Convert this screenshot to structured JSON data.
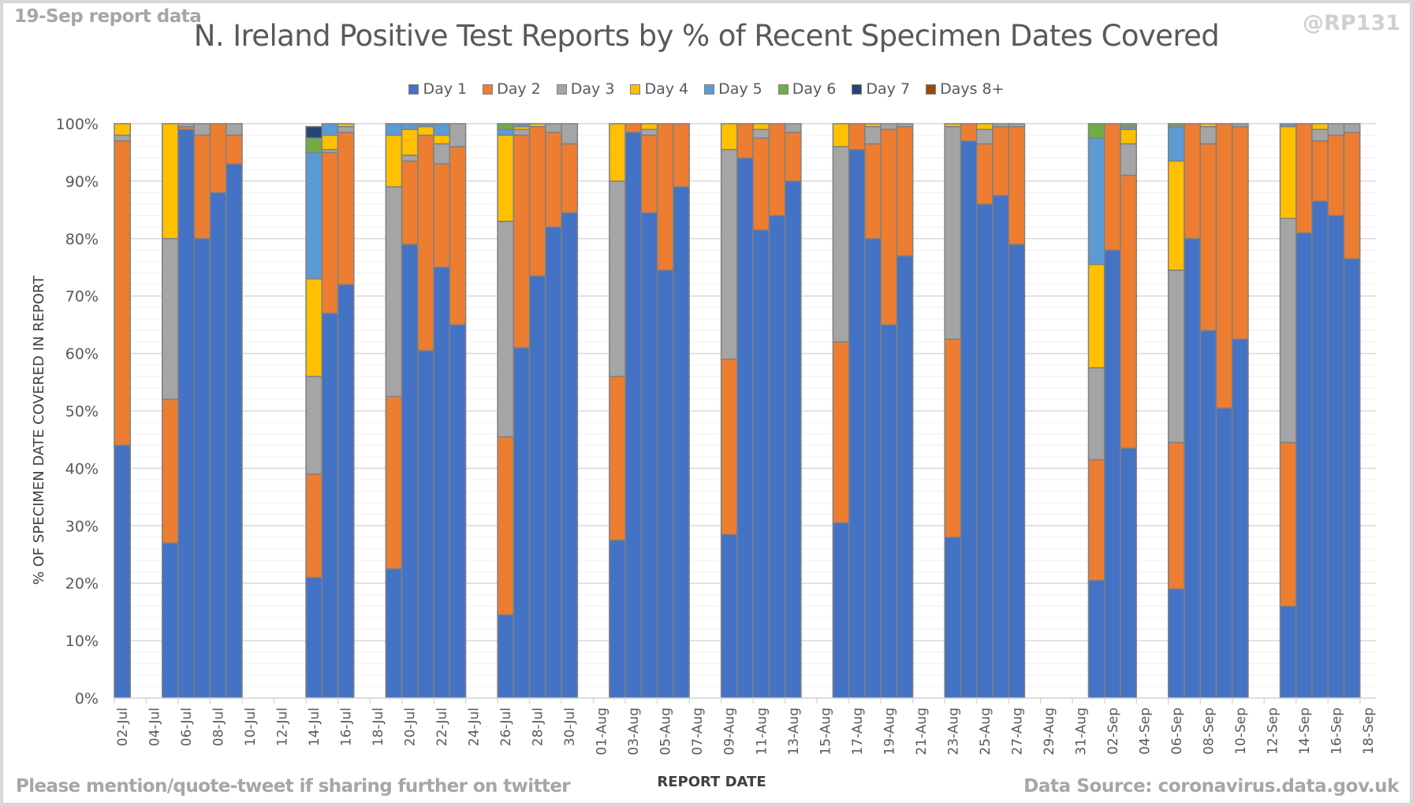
{
  "header": {
    "report_note": "19-Sep report data",
    "handle": "@RP131"
  },
  "footer": {
    "left_note": "Please mention/quote-tweet if sharing further on twitter",
    "source": "Data Source: coronavirus.data.gov.uk"
  },
  "chart_data": {
    "type": "bar",
    "stacked": true,
    "title": "N. Ireland Positive Test Reports by % of Recent Specimen Dates Covered",
    "xlabel": "REPORT DATE",
    "ylabel": "% OF SPECIMEN DATE COVERED IN REPORT",
    "ylim": [
      0,
      100
    ],
    "y_ticks": [
      "0%",
      "10%",
      "20%",
      "30%",
      "40%",
      "50%",
      "60%",
      "70%",
      "80%",
      "90%",
      "100%"
    ],
    "grid": true,
    "legend_position": "top",
    "x_axis_start": "02-Jul",
    "x_axis_end": "18-Sep",
    "x_tick_labels": [
      "02-Jul",
      "04-Jul",
      "06-Jul",
      "08-Jul",
      "10-Jul",
      "12-Jul",
      "14-Jul",
      "16-Jul",
      "18-Jul",
      "20-Jul",
      "22-Jul",
      "24-Jul",
      "26-Jul",
      "28-Jul",
      "30-Jul",
      "01-Aug",
      "03-Aug",
      "05-Aug",
      "07-Aug",
      "09-Aug",
      "11-Aug",
      "13-Aug",
      "15-Aug",
      "17-Aug",
      "19-Aug",
      "21-Aug",
      "23-Aug",
      "25-Aug",
      "27-Aug",
      "29-Aug",
      "31-Aug",
      "02-Sep",
      "04-Sep",
      "06-Sep",
      "08-Sep",
      "10-Sep",
      "12-Sep",
      "14-Sep",
      "16-Sep",
      "18-Sep"
    ],
    "series_meta": [
      {
        "name": "Day 1",
        "color": "#4472c4"
      },
      {
        "name": "Day 2",
        "color": "#ed7d31"
      },
      {
        "name": "Day 3",
        "color": "#a5a5a5"
      },
      {
        "name": "Day 4",
        "color": "#ffc000"
      },
      {
        "name": "Day 5",
        "color": "#5b9bd5"
      },
      {
        "name": "Day 6",
        "color": "#70ad47"
      },
      {
        "name": "Day 7",
        "color": "#264478"
      },
      {
        "name": "Days 8+",
        "color": "#9e480e"
      }
    ],
    "categories": [
      "02-Jul",
      "05-Jul",
      "06-Jul",
      "07-Jul",
      "08-Jul",
      "09-Jul",
      "14-Jul",
      "15-Jul",
      "16-Jul",
      "19-Jul",
      "20-Jul",
      "21-Jul",
      "22-Jul",
      "23-Jul",
      "26-Jul",
      "27-Jul",
      "28-Jul",
      "29-Jul",
      "30-Jul",
      "02-Aug",
      "03-Aug",
      "04-Aug",
      "05-Aug",
      "06-Aug",
      "09-Aug",
      "10-Aug",
      "11-Aug",
      "12-Aug",
      "13-Aug",
      "16-Aug",
      "17-Aug",
      "18-Aug",
      "19-Aug",
      "20-Aug",
      "23-Aug",
      "24-Aug",
      "25-Aug",
      "26-Aug",
      "27-Aug",
      "01-Sep",
      "02-Sep",
      "03-Sep",
      "06-Sep",
      "07-Sep",
      "08-Sep",
      "09-Sep",
      "10-Sep",
      "13-Sep",
      "14-Sep",
      "15-Sep",
      "16-Sep",
      "17-Sep"
    ],
    "series": [
      {
        "name": "Day 1",
        "values": [
          44,
          27,
          99,
          80,
          88,
          93,
          21,
          67,
          72,
          22.5,
          79,
          60.5,
          75,
          65,
          14.5,
          61,
          73.5,
          82,
          84.5,
          27.5,
          98.5,
          84.5,
          74.5,
          89,
          28.5,
          94,
          81.5,
          84,
          90,
          30.5,
          95.5,
          80,
          65,
          77,
          28,
          97,
          86,
          87.5,
          79,
          20.5,
          78,
          43.5,
          19,
          80,
          64,
          50.5,
          62.5,
          16,
          81,
          86.5,
          84,
          76.5
        ]
      },
      {
        "name": "Day 2",
        "values": [
          53,
          25,
          0.5,
          18,
          12,
          5,
          18,
          28,
          26.5,
          30,
          14.5,
          37.5,
          18,
          31,
          31,
          37,
          26,
          16.5,
          12,
          28.5,
          1.5,
          13.5,
          25.5,
          11,
          30.5,
          6,
          16,
          16,
          8.5,
          31.5,
          4.5,
          16.5,
          34,
          22.5,
          34.5,
          3,
          10.5,
          12,
          20.5,
          21,
          22,
          47.5,
          25.5,
          20,
          32.5,
          49.5,
          37,
          28.5,
          19,
          10.5,
          14,
          22
        ]
      },
      {
        "name": "Day 3",
        "values": [
          1,
          28,
          0.5,
          2,
          0,
          2,
          17,
          0.5,
          1,
          36.5,
          1,
          0,
          3.5,
          4,
          37.5,
          1,
          0,
          1.5,
          3.5,
          34,
          0,
          1,
          0,
          0,
          36.5,
          0,
          1.5,
          0,
          1.5,
          34,
          0,
          3,
          1,
          0.5,
          37,
          0,
          2.5,
          0.5,
          0.5,
          16,
          0,
          5.5,
          30,
          0,
          3,
          0,
          0.5,
          39,
          0,
          2,
          2,
          1.5
        ]
      },
      {
        "name": "Day 4",
        "values": [
          2,
          20,
          0,
          0,
          0,
          0,
          17,
          2.5,
          0.5,
          9,
          4.5,
          1.5,
          1.5,
          0,
          15,
          0.5,
          0.5,
          0,
          0,
          10,
          0,
          1,
          0,
          0,
          4.5,
          0,
          1,
          0,
          0,
          4,
          0,
          0.5,
          0,
          0,
          0.5,
          0,
          1,
          0,
          0,
          18,
          0,
          2.5,
          19,
          0,
          0.5,
          0,
          0,
          16,
          0,
          1,
          0,
          0
        ]
      },
      {
        "name": "Day 5",
        "values": [
          0,
          0,
          0,
          0,
          0,
          0,
          22,
          2,
          0,
          2,
          1,
          0.5,
          2,
          0,
          1,
          0.5,
          0,
          0,
          0,
          0,
          0,
          0,
          0,
          0,
          0,
          0,
          0,
          0,
          0,
          0,
          0,
          0,
          0,
          0,
          0,
          0,
          0,
          0,
          0,
          22,
          0,
          0.5,
          6,
          0,
          0,
          0,
          0,
          0.5,
          0,
          0,
          0,
          0
        ]
      },
      {
        "name": "Day 6",
        "values": [
          0,
          0,
          0,
          0,
          0,
          0,
          2.5,
          0,
          0,
          0,
          0,
          0,
          0,
          0,
          1,
          0,
          0,
          0,
          0,
          0,
          0,
          0,
          0,
          0,
          0,
          0,
          0,
          0,
          0,
          0,
          0,
          0,
          0,
          0,
          0,
          0,
          0,
          0,
          0,
          2.5,
          0,
          0.5,
          0.5,
          0,
          0,
          0,
          0,
          0,
          0,
          0,
          0,
          0
        ]
      },
      {
        "name": "Day 7",
        "values": [
          0,
          0,
          0,
          0,
          0,
          0,
          2,
          0,
          0,
          0,
          0,
          0,
          0,
          0,
          0,
          0,
          0,
          0,
          0,
          0,
          0,
          0,
          0,
          0,
          0,
          0,
          0,
          0,
          0,
          0,
          0,
          0,
          0,
          0,
          0,
          0,
          0,
          0,
          0,
          0,
          0,
          0,
          0,
          0,
          0,
          0,
          0,
          0,
          0,
          0,
          0,
          0
        ]
      },
      {
        "name": "Days 8+",
        "values": [
          0,
          0,
          0,
          0,
          0,
          0,
          0,
          0,
          0,
          0,
          0,
          0,
          0,
          0,
          0,
          0,
          0,
          0,
          0,
          0,
          0,
          0,
          0,
          0,
          0,
          0,
          0,
          0,
          0,
          0,
          0,
          0,
          0,
          0,
          0,
          0,
          0,
          0,
          0,
          0,
          0,
          0,
          0,
          0,
          0,
          0,
          0,
          0,
          0,
          0,
          0,
          0
        ]
      }
    ]
  }
}
